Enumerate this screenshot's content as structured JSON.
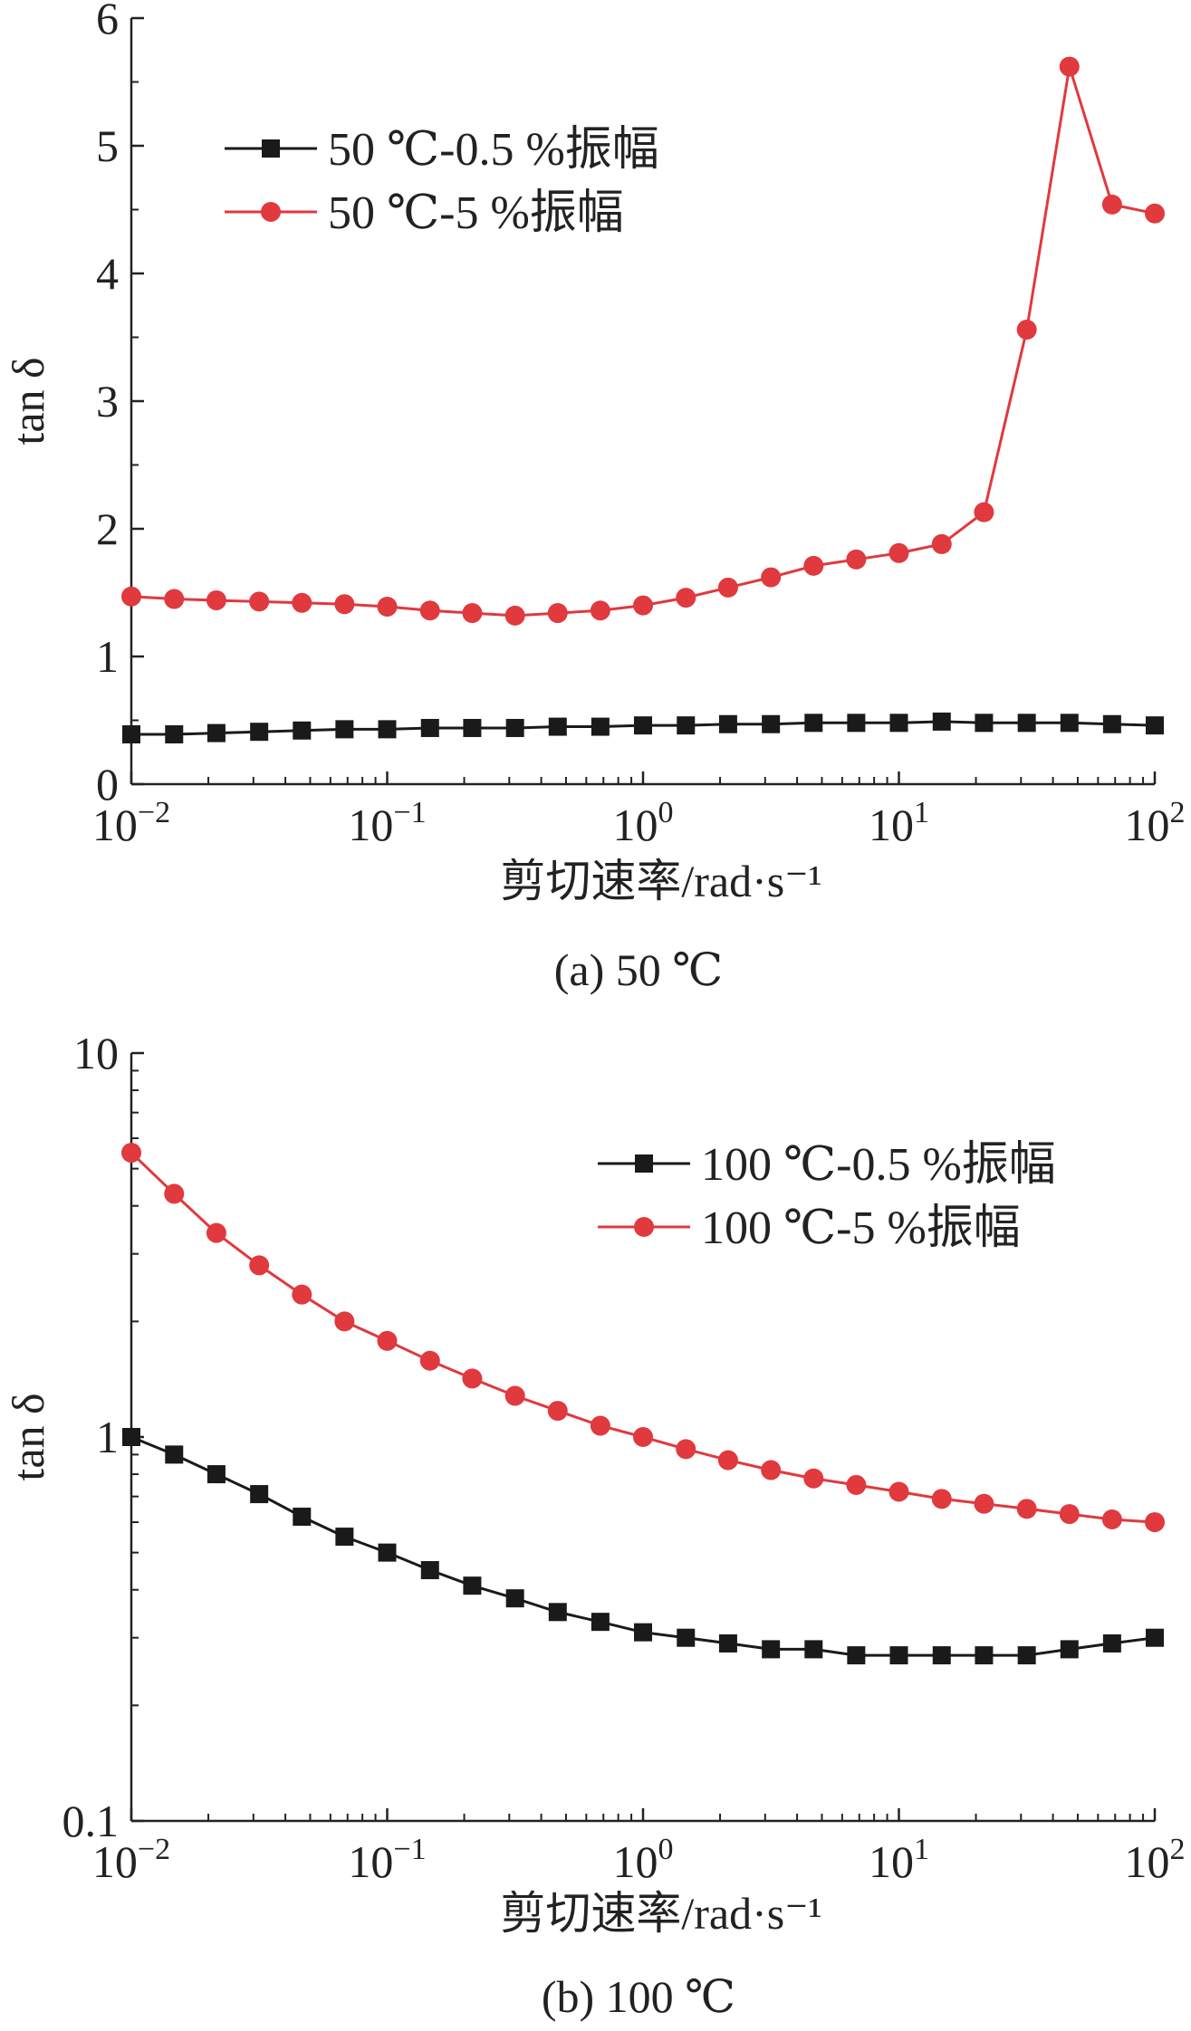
{
  "chart_data": [
    {
      "type": "line",
      "xscale": "log",
      "yscale": "linear",
      "xlim": [
        0.01,
        100
      ],
      "ylim": [
        0,
        6
      ],
      "xlabel": "剪切速率/rad·s⁻¹",
      "ylabel": "tan δ",
      "caption": "(a) 50 ℃",
      "x_ticks": [
        {
          "value": 0.01,
          "base": "10",
          "exp": "−2"
        },
        {
          "value": 0.1,
          "base": "10",
          "exp": "−1"
        },
        {
          "value": 1,
          "base": "10",
          "exp": "0"
        },
        {
          "value": 10,
          "base": "10",
          "exp": "1"
        },
        {
          "value": 100,
          "base": "10",
          "exp": "2"
        }
      ],
      "y_ticks": [
        {
          "value": 0,
          "label": "0"
        },
        {
          "value": 1,
          "label": "1"
        },
        {
          "value": 2,
          "label": "2"
        },
        {
          "value": 3,
          "label": "3"
        },
        {
          "value": 4,
          "label": "4"
        },
        {
          "value": 5,
          "label": "5"
        },
        {
          "value": 6,
          "label": "6"
        }
      ],
      "legend_position": "top-left",
      "x": [
        0.01,
        0.0147,
        0.0215,
        0.0316,
        0.0464,
        0.0681,
        0.1,
        0.147,
        0.215,
        0.316,
        0.464,
        0.681,
        1,
        1.47,
        2.15,
        3.16,
        4.64,
        6.81,
        10,
        14.7,
        21.5,
        31.6,
        46.4,
        68.1,
        100
      ],
      "series": [
        {
          "name": "50 ℃-0.5 %振幅",
          "color": "#1a1a1a",
          "marker": "square",
          "values": [
            0.39,
            0.39,
            0.4,
            0.41,
            0.42,
            0.43,
            0.43,
            0.44,
            0.44,
            0.44,
            0.45,
            0.45,
            0.46,
            0.46,
            0.47,
            0.47,
            0.48,
            0.48,
            0.48,
            0.49,
            0.48,
            0.48,
            0.48,
            0.47,
            0.46
          ]
        },
        {
          "name": "50 ℃-5 %振幅",
          "color": "#e0393e",
          "marker": "circle",
          "values": [
            1.47,
            1.45,
            1.44,
            1.43,
            1.42,
            1.41,
            1.39,
            1.36,
            1.34,
            1.32,
            1.34,
            1.36,
            1.4,
            1.46,
            1.54,
            1.62,
            1.71,
            1.76,
            1.81,
            1.88,
            2.13,
            3.56,
            5.62,
            4.54,
            4.47
          ]
        }
      ]
    },
    {
      "type": "line",
      "xscale": "log",
      "yscale": "log",
      "xlim": [
        0.01,
        100
      ],
      "ylim": [
        0.1,
        10
      ],
      "xlabel": "剪切速率/rad·s⁻¹",
      "ylabel": "tan δ",
      "caption": "(b) 100 ℃",
      "x_ticks": [
        {
          "value": 0.01,
          "base": "10",
          "exp": "−2"
        },
        {
          "value": 0.1,
          "base": "10",
          "exp": "−1"
        },
        {
          "value": 1,
          "base": "10",
          "exp": "0"
        },
        {
          "value": 10,
          "base": "10",
          "exp": "1"
        },
        {
          "value": 100,
          "base": "10",
          "exp": "2"
        }
      ],
      "y_ticks": [
        {
          "value": 0.1,
          "label": "0.1"
        },
        {
          "value": 1,
          "label": "1"
        },
        {
          "value": 10,
          "label": "10"
        }
      ],
      "legend_position": "top-right",
      "x": [
        0.01,
        0.0147,
        0.0215,
        0.0316,
        0.0464,
        0.0681,
        0.1,
        0.147,
        0.215,
        0.316,
        0.464,
        0.681,
        1,
        1.47,
        2.15,
        3.16,
        4.64,
        6.81,
        10,
        14.7,
        21.5,
        31.6,
        46.4,
        68.1,
        100
      ],
      "series": [
        {
          "name": "100 ℃-0.5 %振幅",
          "color": "#1a1a1a",
          "marker": "square",
          "values": [
            1.0,
            0.9,
            0.8,
            0.71,
            0.62,
            0.55,
            0.5,
            0.45,
            0.41,
            0.38,
            0.35,
            0.33,
            0.31,
            0.3,
            0.29,
            0.28,
            0.28,
            0.27,
            0.27,
            0.27,
            0.27,
            0.27,
            0.28,
            0.29,
            0.3
          ]
        },
        {
          "name": "100 ℃-5 %振幅",
          "color": "#e0393e",
          "marker": "circle",
          "values": [
            5.5,
            4.3,
            3.4,
            2.8,
            2.35,
            2.0,
            1.78,
            1.58,
            1.42,
            1.28,
            1.17,
            1.07,
            1.0,
            0.93,
            0.87,
            0.82,
            0.78,
            0.75,
            0.72,
            0.69,
            0.67,
            0.65,
            0.63,
            0.61,
            0.6
          ]
        }
      ]
    }
  ]
}
